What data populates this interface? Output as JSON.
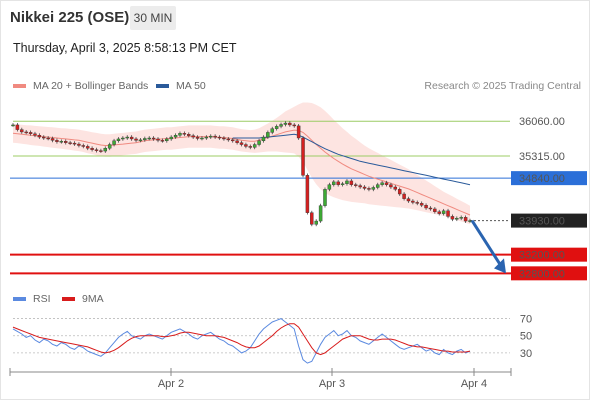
{
  "header": {
    "title": "Nikkei 225 (OSE)",
    "timeframe": "30 MIN",
    "datetime": "Thursday, April 3, 2025 8:58:13 PM CET"
  },
  "legend": {
    "ma20": "MA 20 + Bollinger Bands",
    "ma50": "MA 50",
    "rsi": "RSI",
    "ma9": "9MA",
    "credit": "Research © 2025 Trading Central"
  },
  "colors": {
    "ma20": "#f08a80",
    "ma50": "#2a5a9a",
    "band": "#fde1de",
    "resistance": "#9ccc65",
    "pivot": "#2b6fd8",
    "support": "#e01010",
    "rsi": "#5b8ae0",
    "rsi_ma": "#d81c1c",
    "candle_up": "#3daa35",
    "candle_down": "#d52020",
    "arrow": "#2a64b0"
  },
  "chart_data": [
    {
      "type": "candlestick",
      "x_ticks": [
        "Apr 2",
        "Apr 3",
        "Apr 4"
      ],
      "ylim": [
        32400,
        36600
      ],
      "levels": [
        {
          "label": "36060.00",
          "value": 36060,
          "kind": "resistance"
        },
        {
          "label": "35315.00",
          "value": 35315,
          "kind": "resistance"
        },
        {
          "label": "34840.00",
          "value": 34840,
          "kind": "pivot"
        },
        {
          "label": "33930.00",
          "value": 33930,
          "kind": "last"
        },
        {
          "label": "33200.00",
          "value": 33200,
          "kind": "support"
        },
        {
          "label": "32800.00",
          "value": 32800,
          "kind": "support"
        }
      ],
      "series": [
        {
          "key": "close",
          "values": [
            35980,
            35880,
            35830,
            35820,
            35790,
            35760,
            35720,
            35700,
            35690,
            35650,
            35620,
            35630,
            35600,
            35590,
            35570,
            35540,
            35520,
            35480,
            35450,
            35430,
            35420,
            35480,
            35560,
            35640,
            35680,
            35700,
            35720,
            35680,
            35650,
            35660,
            35690,
            35700,
            35680,
            35650,
            35640,
            35680,
            35720,
            35760,
            35800,
            35780,
            35750,
            35720,
            35690,
            35700,
            35720,
            35740,
            35720,
            35700,
            35680,
            35660,
            35640,
            35600,
            35560,
            35520,
            35500,
            35560,
            35640,
            35720,
            35820,
            35900,
            35950,
            35990,
            36020,
            35980,
            35960,
            35700,
            34900,
            34100,
            33850,
            33920,
            34250,
            34600,
            34700,
            34760,
            34700,
            34720,
            34780,
            34700,
            34680,
            34650,
            34620,
            34600,
            34640,
            34700,
            34740,
            34700,
            34650,
            34600,
            34500,
            34400,
            34350,
            34320,
            34300,
            34260,
            34200,
            34180,
            34120,
            34080,
            34140,
            34020,
            33960,
            33980,
            34000,
            33920,
            33930
          ]
        },
        {
          "key": "ma20",
          "values": [
            35800,
            35790,
            35780,
            35770,
            35760,
            35750,
            35740,
            35730,
            35720,
            35710,
            35700,
            35690,
            35680,
            35670,
            35660,
            35650,
            35630,
            35610,
            35590,
            35570,
            35550,
            35540,
            35540,
            35550,
            35560,
            35570,
            35580,
            35590,
            35600,
            35620,
            35640,
            35650,
            35660,
            35670,
            35680,
            35690,
            35690,
            35700,
            35710,
            35720,
            35730,
            35730,
            35730,
            35730,
            35730,
            35730,
            35720,
            35710,
            35710,
            35700,
            35690,
            35670,
            35650,
            35640,
            35630,
            35630,
            35650,
            35680,
            35710,
            35740,
            35770,
            35800,
            35830,
            35850,
            35870,
            35860,
            35820,
            35740,
            35650,
            35560,
            35480,
            35400,
            35330,
            35260,
            35200,
            35140,
            35090,
            35040,
            35000,
            34960,
            34920,
            34880,
            34850,
            34820,
            34790,
            34760,
            34730,
            34700,
            34670,
            34640,
            34610,
            34570,
            34530,
            34490,
            34450,
            34410,
            34370,
            34330,
            34290,
            34250,
            34210,
            34170,
            34130,
            34090,
            34050
          ]
        },
        {
          "key": "ma50",
          "values": [
            null,
            null,
            null,
            null,
            null,
            null,
            null,
            null,
            null,
            null,
            null,
            null,
            null,
            null,
            null,
            null,
            null,
            null,
            null,
            null,
            null,
            null,
            null,
            null,
            null,
            null,
            null,
            null,
            null,
            null,
            null,
            null,
            null,
            null,
            null,
            null,
            null,
            null,
            null,
            null,
            null,
            null,
            null,
            null,
            null,
            null,
            null,
            null,
            null,
            null,
            35700,
            35700,
            35700,
            35700,
            35700,
            35700,
            35700,
            35710,
            35720,
            35730,
            35740,
            35750,
            35760,
            35770,
            35780,
            35760,
            35720,
            35670,
            35620,
            35570,
            35520,
            35470,
            35430,
            35390,
            35350,
            35320,
            35290,
            35260,
            35230,
            35200,
            35180,
            35160,
            35140,
            35120,
            35100,
            35080,
            35060,
            35040,
            35020,
            35000,
            34980,
            34960,
            34940,
            34920,
            34900,
            34880,
            34860,
            34840,
            34820,
            34800,
            34780,
            34760,
            34740,
            34720,
            34700
          ]
        },
        {
          "key": "band_width",
          "values": [
            200,
            200,
            205,
            205,
            210,
            210,
            210,
            215,
            215,
            220,
            220,
            220,
            225,
            225,
            230,
            230,
            230,
            235,
            235,
            240,
            240,
            240,
            240,
            240,
            240,
            240,
            240,
            240,
            240,
            240,
            240,
            240,
            240,
            240,
            240,
            240,
            240,
            240,
            240,
            240,
            240,
            240,
            240,
            240,
            240,
            240,
            240,
            240,
            240,
            240,
            240,
            240,
            240,
            240,
            240,
            250,
            260,
            280,
            300,
            330,
            360,
            400,
            440,
            470,
            500,
            560,
            640,
            720,
            800,
            850,
            880,
            880,
            860,
            830,
            800,
            770,
            740,
            710,
            680,
            650,
            620,
            600,
            580,
            560,
            540,
            520,
            500,
            480,
            460,
            440,
            420,
            400,
            380,
            360,
            340,
            320,
            300,
            280,
            260,
            250,
            240,
            230,
            220,
            210,
            200
          ]
        }
      ]
    },
    {
      "type": "line",
      "ylim": [
        10,
        80
      ],
      "y_ticks": [
        70,
        50,
        30
      ],
      "series": [
        {
          "key": "rsi",
          "values": [
            58,
            55,
            52,
            48,
            50,
            45,
            42,
            46,
            44,
            40,
            38,
            42,
            40,
            36,
            34,
            38,
            36,
            32,
            30,
            28,
            26,
            30,
            36,
            42,
            48,
            52,
            55,
            50,
            48,
            46,
            50,
            52,
            50,
            48,
            46,
            50,
            54,
            56,
            58,
            55,
            52,
            48,
            46,
            50,
            52,
            54,
            50,
            46,
            44,
            40,
            38,
            34,
            30,
            32,
            36,
            44,
            52,
            58,
            62,
            66,
            68,
            70,
            66,
            62,
            58,
            38,
            22,
            18,
            20,
            30,
            40,
            48,
            52,
            56,
            50,
            52,
            56,
            50,
            48,
            44,
            42,
            40,
            44,
            48,
            52,
            48,
            44,
            40,
            36,
            34,
            36,
            38,
            40,
            36,
            32,
            34,
            30,
            28,
            34,
            30,
            28,
            32,
            34,
            30,
            32
          ]
        },
        {
          "key": "rsi_ma",
          "values": [
            60,
            58,
            56,
            54,
            52,
            50,
            48,
            47,
            46,
            45,
            44,
            43,
            42,
            41,
            40,
            39,
            38,
            37,
            35,
            33,
            31,
            30,
            31,
            33,
            36,
            40,
            44,
            47,
            49,
            50,
            50,
            50,
            50,
            50,
            49,
            49,
            50,
            51,
            53,
            54,
            54,
            53,
            52,
            51,
            50,
            50,
            50,
            49,
            48,
            46,
            44,
            42,
            39,
            37,
            36,
            36,
            38,
            42,
            46,
            50,
            55,
            59,
            62,
            64,
            64,
            60,
            52,
            44,
            36,
            30,
            28,
            30,
            34,
            38,
            42,
            46,
            48,
            50,
            50,
            50,
            48,
            46,
            45,
            45,
            46,
            46,
            46,
            45,
            43,
            41,
            39,
            38,
            37,
            37,
            36,
            35,
            34,
            33,
            32,
            32,
            31,
            31,
            31,
            31,
            32
          ]
        }
      ]
    }
  ]
}
